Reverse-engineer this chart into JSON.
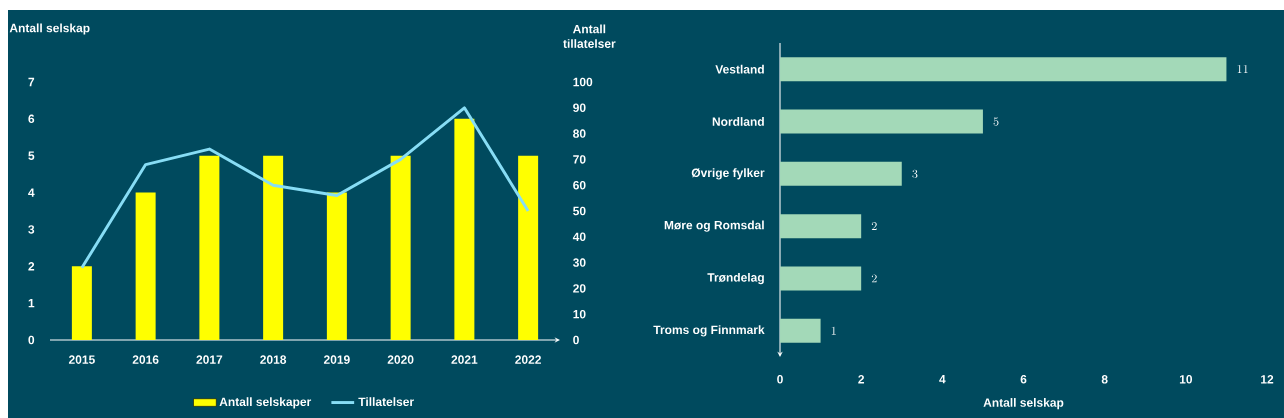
{
  "chart_data": [
    {
      "type": "bar",
      "categories": [
        "2015",
        "2016",
        "2017",
        "2018",
        "2019",
        "2020",
        "2021",
        "2022"
      ],
      "series": [
        {
          "name": "Antall selskaper",
          "type": "bar",
          "color": "#ffff00",
          "values": [
            2,
            4,
            5,
            5,
            4,
            5,
            6,
            5
          ]
        },
        {
          "name": "Tillatelser",
          "type": "line",
          "axis": "y2",
          "color": "#87ddf5",
          "values": [
            28,
            68,
            74,
            60,
            56,
            70,
            90,
            50
          ]
        }
      ],
      "ylabel": "Antall selskap",
      "y2label": "Antall tillatelser",
      "ylim": [
        0,
        7
      ],
      "yticks": [
        0,
        1,
        2,
        3,
        4,
        5,
        6,
        7
      ],
      "y2lim": [
        0,
        100
      ],
      "y2ticks": [
        0,
        10,
        20,
        30,
        40,
        50,
        60,
        70,
        80,
        90,
        100
      ],
      "legend": "bottom"
    },
    {
      "type": "bar",
      "orientation": "horizontal",
      "categories": [
        "Vestland",
        "Nordland",
        "Øvrige fylker",
        "Møre og Romsdal",
        "Trøndelag",
        "Troms og Finnmark"
      ],
      "values": [
        11,
        5,
        3,
        2,
        2,
        1
      ],
      "color": "#a3d9b8",
      "data_labels": true,
      "xlim": [
        0,
        12
      ],
      "xticks": [
        0,
        2,
        4,
        6,
        8,
        10,
        12
      ],
      "xlabel": "Antall selskap"
    }
  ]
}
